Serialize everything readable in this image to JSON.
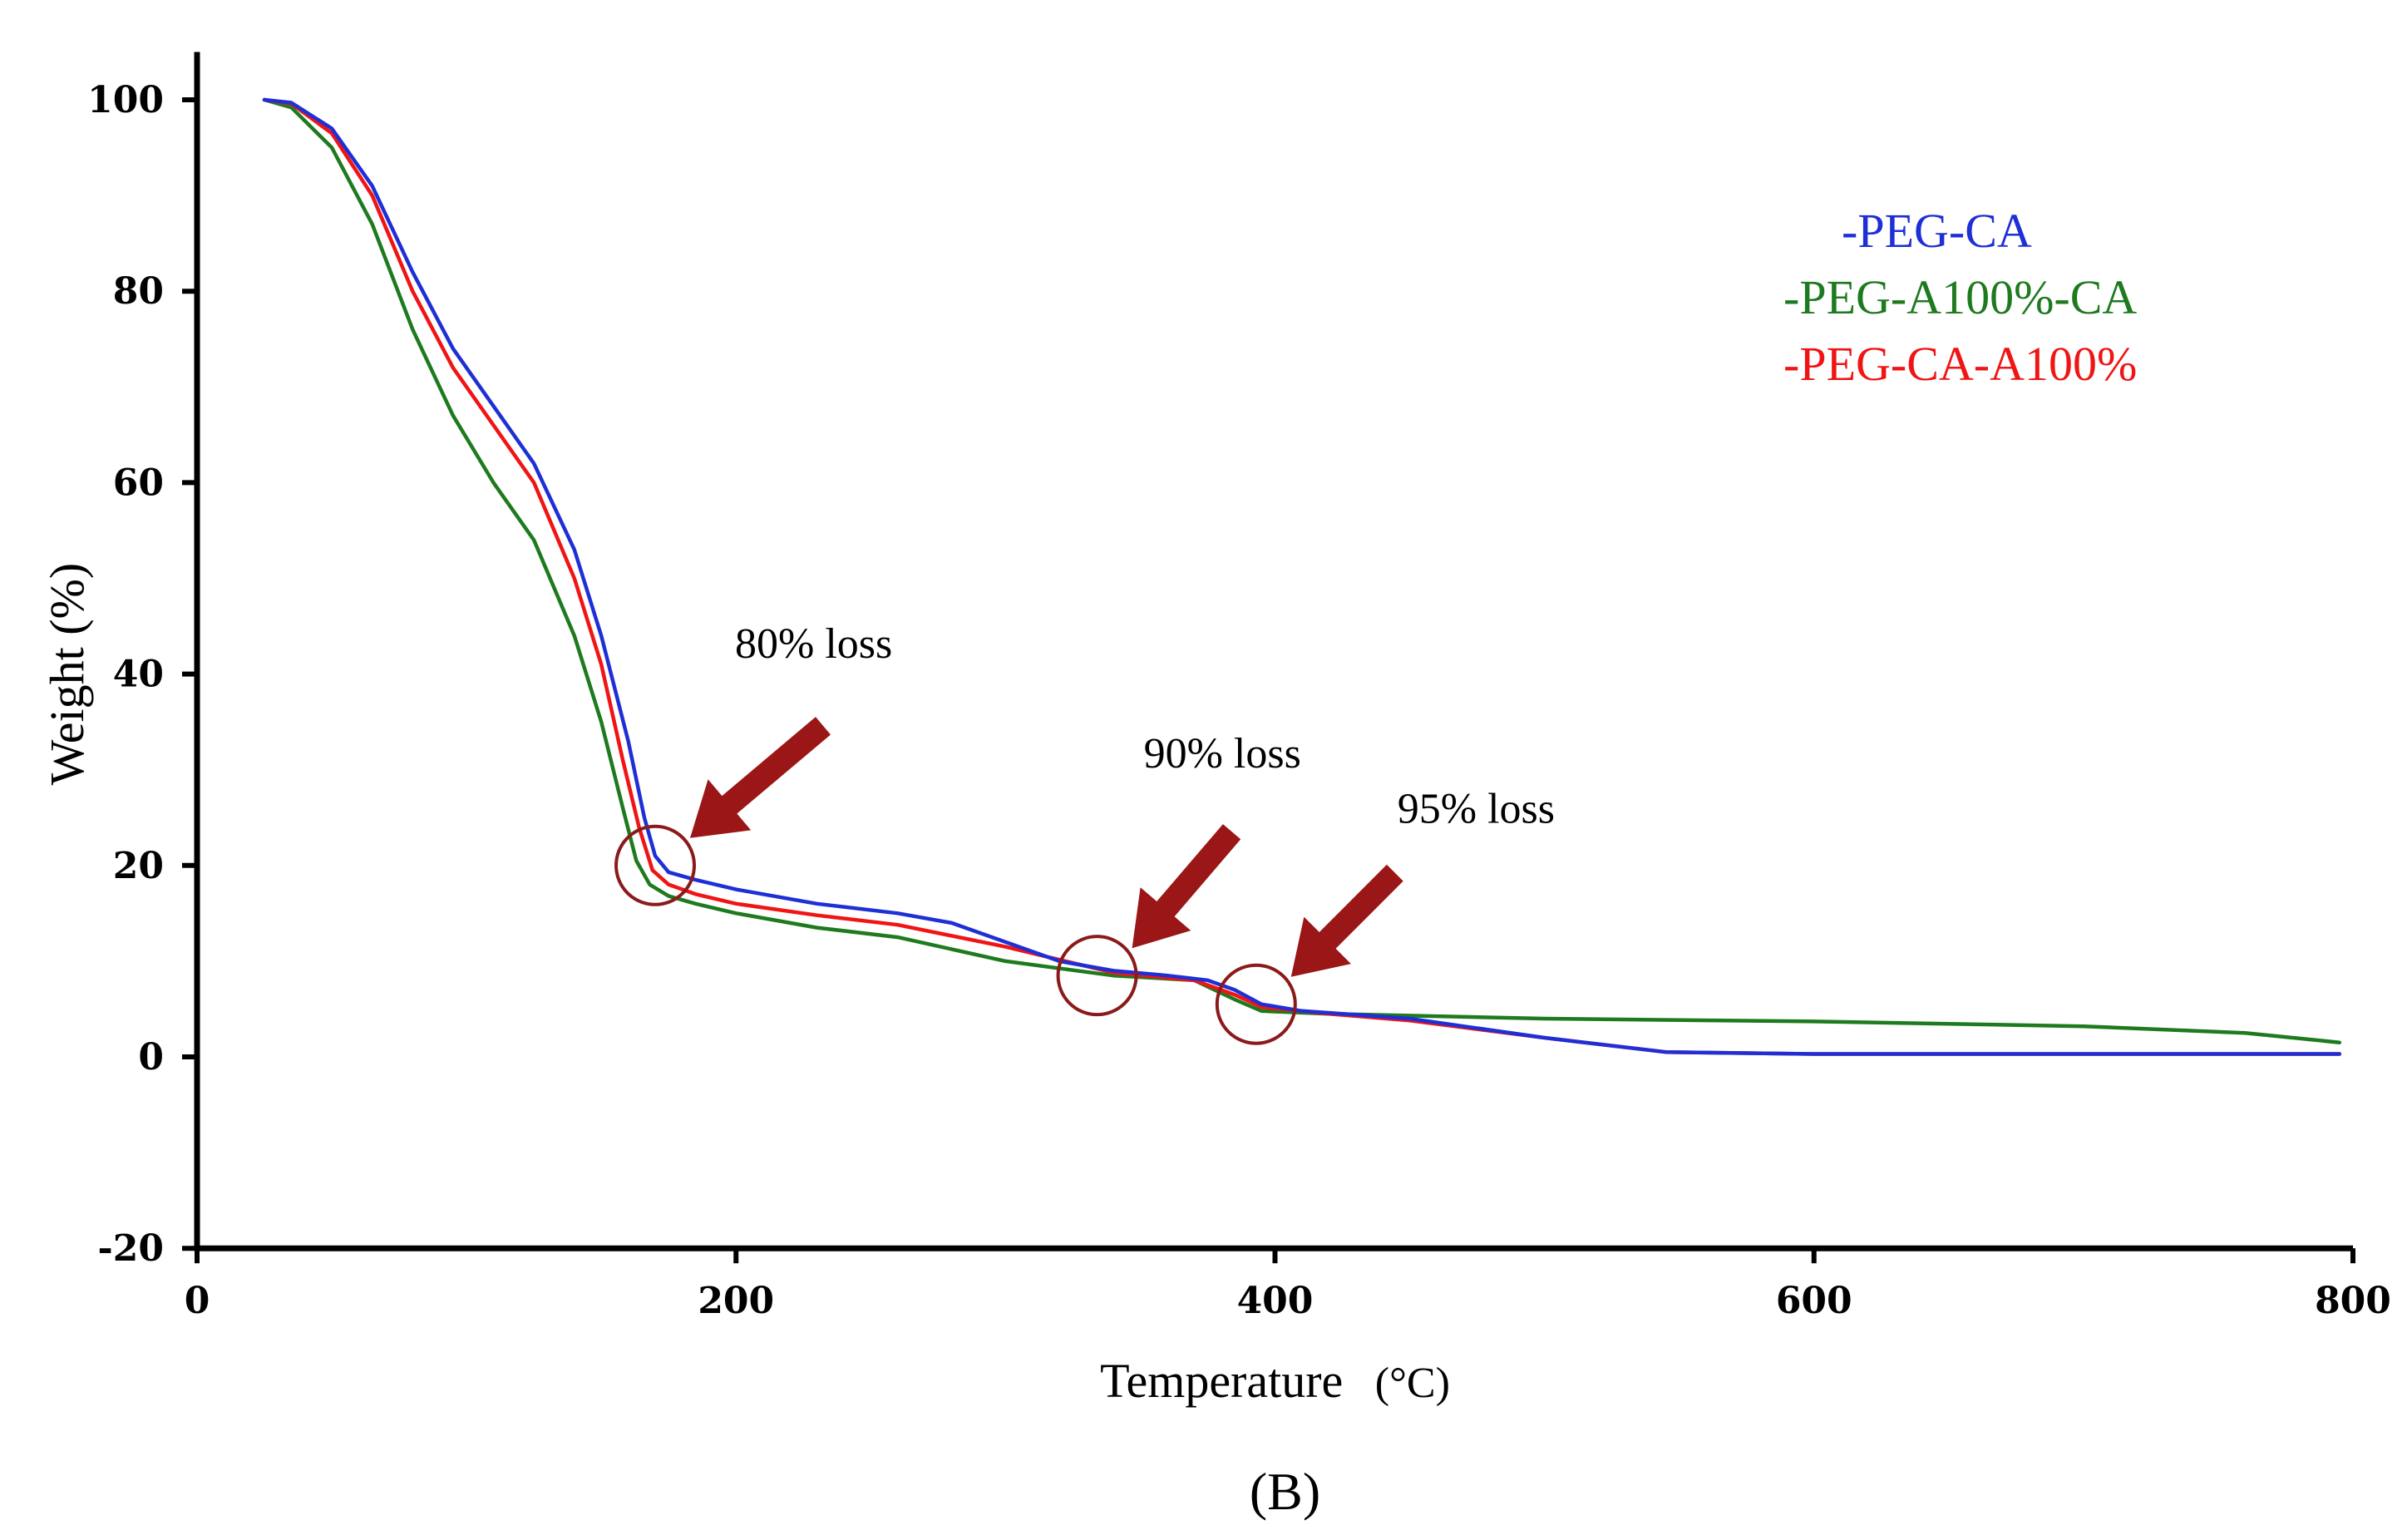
{
  "chart_data": {
    "type": "line",
    "title": "",
    "xlabel": "Temperature",
    "xlabel_unit": "(°C)",
    "ylabel": "Weight (%)",
    "xlim": [
      0,
      800
    ],
    "ylim": [
      -20,
      105
    ],
    "x_ticks": [
      0,
      200,
      400,
      600,
      800
    ],
    "y_ticks": [
      -20,
      0,
      20,
      40,
      60,
      80,
      100
    ],
    "grid": false,
    "legend_position": "top-right",
    "series": [
      {
        "name": "-PEG-CA",
        "color": "#1f2fd6",
        "points": [
          [
            25,
            100
          ],
          [
            35,
            99.7
          ],
          [
            50,
            97
          ],
          [
            65,
            91
          ],
          [
            80,
            82
          ],
          [
            95,
            74
          ],
          [
            110,
            68
          ],
          [
            125,
            62
          ],
          [
            140,
            53
          ],
          [
            150,
            44
          ],
          [
            160,
            33
          ],
          [
            166,
            25
          ],
          [
            170,
            21
          ],
          [
            175,
            19.3
          ],
          [
            185,
            18.5
          ],
          [
            200,
            17.5
          ],
          [
            230,
            16
          ],
          [
            260,
            15
          ],
          [
            280,
            14
          ],
          [
            300,
            12
          ],
          [
            320,
            10
          ],
          [
            340,
            9
          ],
          [
            360,
            8.5
          ],
          [
            375,
            8
          ],
          [
            385,
            7
          ],
          [
            395,
            5.5
          ],
          [
            410,
            4.8
          ],
          [
            450,
            4
          ],
          [
            500,
            2
          ],
          [
            545,
            0.5
          ],
          [
            600,
            0.3
          ],
          [
            700,
            0.3
          ],
          [
            795,
            0.3
          ]
        ]
      },
      {
        "name": "-PEG-A100%-CA",
        "color": "#1e7a1e",
        "points": [
          [
            25,
            100
          ],
          [
            35,
            99.2
          ],
          [
            50,
            95
          ],
          [
            65,
            87
          ],
          [
            80,
            76
          ],
          [
            95,
            67
          ],
          [
            110,
            60
          ],
          [
            125,
            54
          ],
          [
            140,
            44
          ],
          [
            150,
            35
          ],
          [
            158,
            26
          ],
          [
            163,
            20.5
          ],
          [
            168,
            18
          ],
          [
            175,
            16.8
          ],
          [
            185,
            16
          ],
          [
            200,
            15
          ],
          [
            230,
            13.5
          ],
          [
            260,
            12.5
          ],
          [
            300,
            10
          ],
          [
            340,
            8.5
          ],
          [
            370,
            8
          ],
          [
            385,
            6
          ],
          [
            395,
            4.8
          ],
          [
            420,
            4.5
          ],
          [
            500,
            4
          ],
          [
            600,
            3.7
          ],
          [
            700,
            3.2
          ],
          [
            760,
            2.5
          ],
          [
            795,
            1.5
          ]
        ]
      },
      {
        "name": "-PEG-CA-A100%",
        "color": "#f01414",
        "points": [
          [
            25,
            100
          ],
          [
            35,
            99.6
          ],
          [
            50,
            96.5
          ],
          [
            65,
            90
          ],
          [
            80,
            80
          ],
          [
            95,
            72
          ],
          [
            110,
            66
          ],
          [
            125,
            60
          ],
          [
            140,
            50
          ],
          [
            150,
            41
          ],
          [
            158,
            31
          ],
          [
            164,
            24
          ],
          [
            169,
            19.5
          ],
          [
            175,
            18
          ],
          [
            185,
            17
          ],
          [
            200,
            16
          ],
          [
            230,
            14.8
          ],
          [
            260,
            13.8
          ],
          [
            300,
            11.5
          ],
          [
            340,
            8.8
          ],
          [
            370,
            8
          ],
          [
            385,
            6.5
          ],
          [
            395,
            5.2
          ],
          [
            420,
            4.5
          ],
          [
            450,
            3.8
          ],
          [
            500,
            2
          ],
          [
            545,
            0.5
          ],
          [
            600,
            0.3
          ],
          [
            700,
            0.3
          ],
          [
            795,
            0.3
          ]
        ]
      }
    ],
    "annotations": [
      {
        "text": "80% loss",
        "at": [
          170,
          20
        ]
      },
      {
        "text": "90% loss",
        "at": [
          334,
          8.5
        ]
      },
      {
        "text": "95% loss",
        "at": [
          393,
          5.5
        ]
      }
    ],
    "panel_label": "(B)"
  }
}
